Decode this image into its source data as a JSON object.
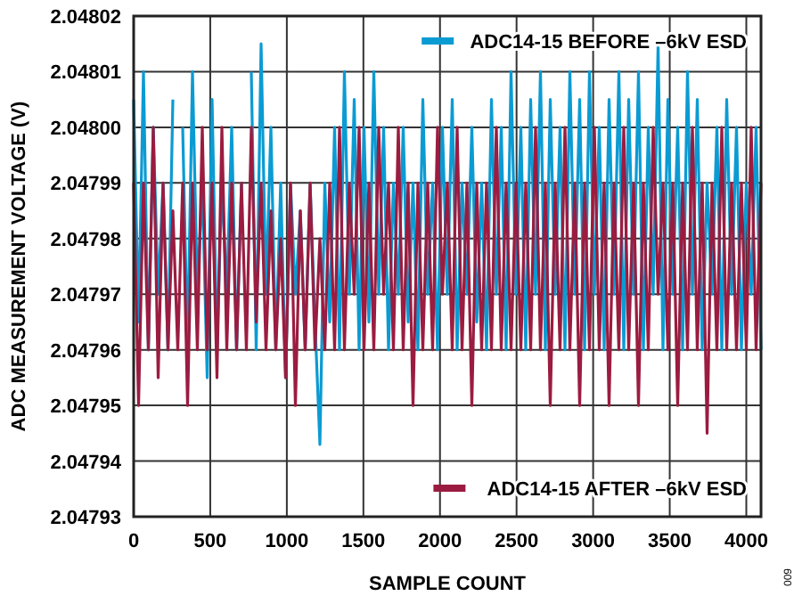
{
  "chart_data": {
    "type": "line",
    "xlabel": "SAMPLE COUNT",
    "ylabel": "ADC MEASUREMENT VOLTAGE (V)",
    "x": [
      0,
      32,
      64,
      96,
      128,
      160,
      192,
      224,
      256,
      288,
      320,
      352,
      384,
      416,
      448,
      480,
      512,
      544,
      576,
      608,
      640,
      672,
      704,
      736,
      768,
      800,
      832,
      864,
      896,
      928,
      960,
      992,
      1024,
      1056,
      1088,
      1120,
      1152,
      1184,
      1216,
      1248,
      1280,
      1312,
      1344,
      1376,
      1408,
      1440,
      1472,
      1504,
      1536,
      1568,
      1600,
      1632,
      1664,
      1696,
      1728,
      1760,
      1792,
      1824,
      1856,
      1888,
      1920,
      1952,
      1984,
      2016,
      2048,
      2080,
      2112,
      2144,
      2176,
      2208,
      2240,
      2272,
      2304,
      2336,
      2368,
      2400,
      2432,
      2464,
      2496,
      2528,
      2560,
      2592,
      2624,
      2656,
      2688,
      2720,
      2752,
      2784,
      2816,
      2848,
      2880,
      2912,
      2944,
      2976,
      3008,
      3040,
      3072,
      3104,
      3136,
      3168,
      3200,
      3232,
      3264,
      3296,
      3328,
      3360,
      3392,
      3424,
      3456,
      3488,
      3520,
      3552,
      3584,
      3616,
      3648,
      3680,
      3712,
      3744,
      3776,
      3808,
      3840,
      3872,
      3904,
      3936,
      3968,
      4000,
      4032,
      4064,
      4096
    ],
    "series": [
      {
        "name": "ADC14-15 BEFORE –6kV ESD",
        "color": "#0b9bd3",
        "values": [
          2.048005,
          2.047965,
          2.04801,
          2.04796,
          2.048,
          2.04797,
          2.04799,
          2.04796,
          2.048005,
          null,
          2.048,
          2.04796,
          2.04801,
          2.04797,
          2.04799,
          2.047955,
          2.048005,
          2.04796,
          2.04799,
          2.04797,
          2.048,
          2.04796,
          2.04799,
          null,
          2.04801,
          2.04796,
          2.048015,
          2.04797,
          2.048,
          2.04796,
          2.04799,
          2.047955,
          2.04799,
          2.04797,
          2.047985,
          2.04796,
          2.04799,
          2.047965,
          2.047943,
          2.04799,
          2.047965,
          2.048,
          2.04796,
          2.04801,
          2.04797,
          2.048005,
          2.04796,
          2.048,
          2.047965,
          2.04801,
          2.04797,
          2.048,
          2.04796,
          2.04799,
          2.04797,
          2.048,
          2.047965,
          2.04799,
          2.04796,
          2.048005,
          2.04797,
          2.04799,
          2.04796,
          2.048,
          2.04797,
          2.048005,
          2.04796,
          2.04799,
          2.04797,
          2.048,
          2.047965,
          2.04799,
          2.04796,
          2.048005,
          2.04797,
          2.048,
          2.04796,
          2.04801,
          2.04797,
          2.048,
          2.04796,
          2.048005,
          2.04797,
          2.04801,
          2.04796,
          2.048005,
          2.04797,
          2.048,
          2.04796,
          2.04801,
          2.04797,
          2.048005,
          2.04796,
          2.04801,
          2.04797,
          2.048,
          2.04796,
          2.048005,
          2.04797,
          2.04801,
          2.04796,
          2.048005,
          2.04797,
          2.04801,
          2.04796,
          2.048,
          2.04797,
          2.048015,
          2.04796,
          2.048005,
          2.04797,
          2.048,
          2.04796,
          2.04801,
          2.04797,
          2.048005,
          2.04796,
          2.04799,
          2.04797,
          2.048,
          2.04796,
          2.048005,
          2.04797,
          2.048,
          2.04796,
          2.04799,
          2.04797,
          2.048,
          2.04796
        ]
      },
      {
        "name": "ADC14-15 AFTER –6kV ESD",
        "color": "#9b1c40",
        "values": [
          2.04799,
          2.04795,
          2.04799,
          2.04796,
          2.048,
          2.047955,
          2.04799,
          2.04796,
          2.047985,
          2.04796,
          2.04799,
          2.04795,
          2.04799,
          2.04796,
          2.048,
          2.04796,
          2.04799,
          2.047955,
          2.048,
          2.04796,
          2.04799,
          2.04796,
          2.04799,
          2.04796,
          2.048,
          2.047965,
          2.04799,
          2.04796,
          2.047985,
          2.04796,
          2.04798,
          2.047955,
          2.04799,
          2.04795,
          2.047985,
          2.04796,
          2.04799,
          2.04796,
          2.04798,
          2.04796,
          2.04799,
          2.04796,
          2.048,
          2.04796,
          2.04799,
          2.04797,
          2.048,
          2.04796,
          2.04799,
          2.04796,
          2.048,
          2.04797,
          2.04799,
          2.04796,
          2.048,
          2.04796,
          2.04799,
          2.04795,
          2.04799,
          2.04796,
          2.04799,
          2.04796,
          2.048,
          2.04797,
          2.04799,
          2.04796,
          2.048,
          2.04796,
          2.04799,
          2.04795,
          2.04799,
          2.04796,
          2.04799,
          2.04796,
          2.048,
          2.04796,
          2.04799,
          2.04796,
          2.04799,
          2.04796,
          2.04799,
          2.04796,
          2.048,
          2.04796,
          2.04799,
          2.04795,
          2.04799,
          2.04796,
          2.048,
          2.04796,
          2.04799,
          2.04795,
          2.04799,
          2.04796,
          2.048,
          2.04796,
          2.04799,
          2.04795,
          2.04799,
          2.04796,
          2.048,
          2.04796,
          2.04799,
          2.04795,
          2.04799,
          2.04796,
          2.048,
          2.04797,
          2.04799,
          2.04796,
          2.04799,
          2.04795,
          2.04799,
          2.04796,
          2.048,
          2.04796,
          2.04799,
          2.047945,
          2.04799,
          2.04796,
          2.048,
          2.04796,
          2.04799,
          2.04796,
          2.04799,
          2.04796,
          2.048,
          2.04796,
          2.04799
        ]
      }
    ],
    "xlim": [
      0,
      4096
    ],
    "xticks": [
      0,
      500,
      1000,
      1500,
      2000,
      2500,
      3000,
      3500,
      4000
    ],
    "ylim": [
      2.04793,
      2.04802
    ],
    "yticks": [
      2.04793,
      2.04794,
      2.04795,
      2.04796,
      2.04797,
      2.04798,
      2.04799,
      {
        "value": 2.048,
        "label": "2.04800"
      },
      2.04801,
      2.04802
    ],
    "grid": true,
    "legend": "right",
    "annotations": [
      "009"
    ]
  }
}
